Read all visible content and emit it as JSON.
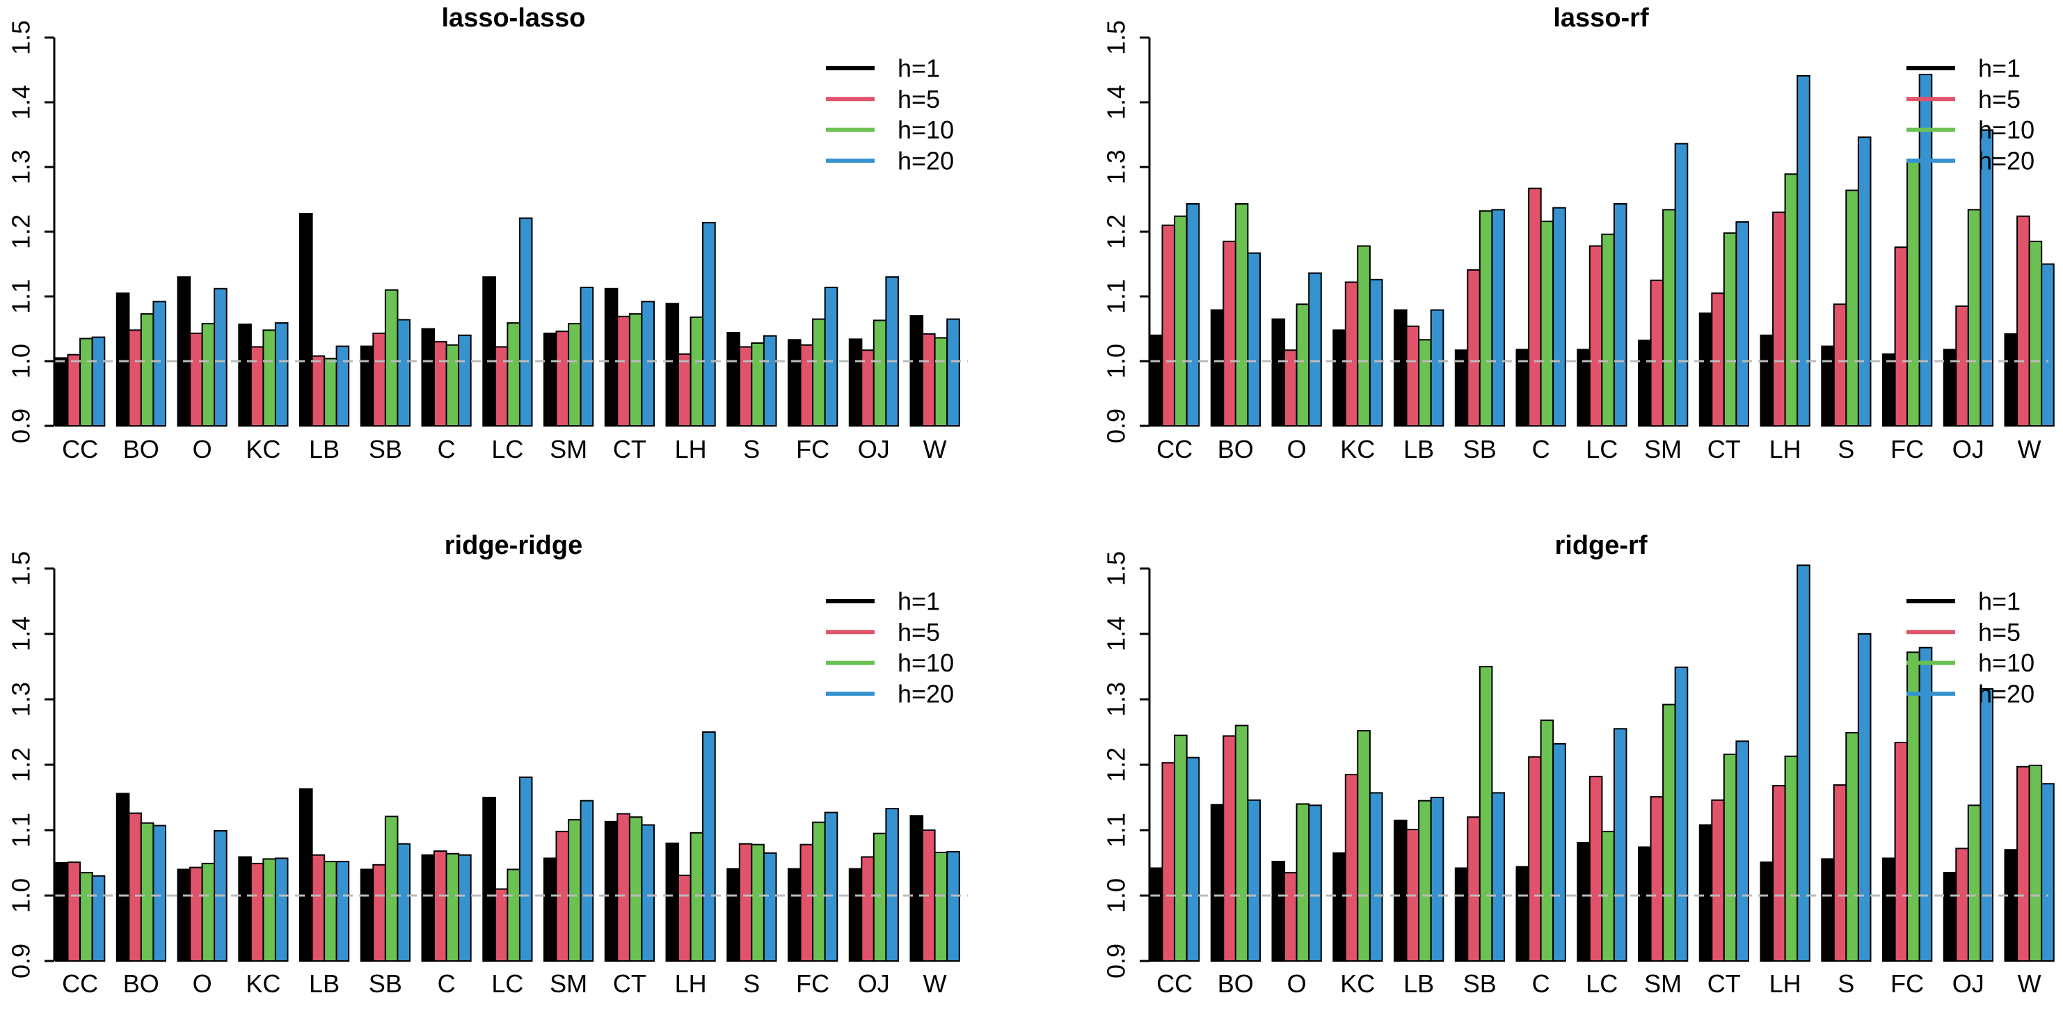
{
  "figure": {
    "background": "#ffffff",
    "reference_line": {
      "y": 1.0,
      "color": "#bbbbbb",
      "style": "dashed"
    },
    "axis_color": "#000000",
    "series_colors": {
      "h=1": "#000000",
      "h=5": "#e0536b",
      "h=10": "#6cc153",
      "h=20": "#3793d0"
    },
    "legend": {
      "position": "topright",
      "items": [
        {
          "label": "h=1",
          "color": "#000000"
        },
        {
          "label": "h=5",
          "color": "#e0536b"
        },
        {
          "label": "h=10",
          "color": "#6cc153"
        },
        {
          "label": "h=20",
          "color": "#3793d0"
        }
      ]
    }
  },
  "chart_data": [
    {
      "type": "bar",
      "title": "lasso-lasso",
      "xlabel": "",
      "ylabel": "",
      "ylim": [
        0.9,
        1.5
      ],
      "y_ticks": [
        0.9,
        1.0,
        1.1,
        1.2,
        1.3,
        1.4,
        1.5
      ],
      "reference_line": 1.0,
      "grid": false,
      "legend_position": "topright",
      "categories": [
        "CC",
        "BO",
        "O",
        "KC",
        "LB",
        "SB",
        "C",
        "LC",
        "SM",
        "CT",
        "LH",
        "S",
        "FC",
        "OJ",
        "W"
      ],
      "series": [
        {
          "name": "h=1",
          "color": "#000000",
          "values": [
            1.005,
            1.105,
            1.13,
            1.057,
            1.228,
            1.023,
            1.05,
            1.13,
            1.043,
            1.112,
            1.089,
            1.044,
            1.033,
            1.034,
            1.07
          ]
        },
        {
          "name": "h=5",
          "color": "#e0536b",
          "values": [
            1.01,
            1.048,
            1.043,
            1.022,
            1.008,
            1.043,
            1.03,
            1.022,
            1.046,
            1.069,
            1.011,
            1.022,
            1.025,
            1.017,
            1.042
          ]
        },
        {
          "name": "h=10",
          "color": "#6cc153",
          "values": [
            1.035,
            1.073,
            1.058,
            1.048,
            1.004,
            1.11,
            1.025,
            1.059,
            1.058,
            1.073,
            1.068,
            1.028,
            1.065,
            1.063,
            1.036
          ]
        },
        {
          "name": "h=20",
          "color": "#3793d0",
          "values": [
            1.037,
            1.092,
            1.112,
            1.059,
            1.023,
            1.064,
            1.04,
            1.221,
            1.114,
            1.092,
            1.214,
            1.039,
            1.114,
            1.13,
            1.065
          ]
        }
      ]
    },
    {
      "type": "bar",
      "title": "lasso-rf",
      "xlabel": "",
      "ylabel": "",
      "ylim": [
        0.9,
        1.5
      ],
      "y_ticks": [
        0.9,
        1.0,
        1.1,
        1.2,
        1.3,
        1.4,
        1.5
      ],
      "reference_line": 1.0,
      "grid": false,
      "legend_position": "topright",
      "categories": [
        "CC",
        "BO",
        "O",
        "KC",
        "LB",
        "SB",
        "C",
        "LC",
        "SM",
        "CT",
        "LH",
        "S",
        "FC",
        "OJ",
        "W"
      ],
      "series": [
        {
          "name": "h=1",
          "color": "#000000",
          "values": [
            1.04,
            1.079,
            1.065,
            1.048,
            1.079,
            1.017,
            1.018,
            1.018,
            1.032,
            1.074,
            1.04,
            1.023,
            1.011,
            1.018,
            1.042
          ]
        },
        {
          "name": "h=5",
          "color": "#e0536b",
          "values": [
            1.21,
            1.185,
            1.017,
            1.122,
            1.054,
            1.141,
            1.267,
            1.178,
            1.125,
            1.105,
            1.23,
            1.088,
            1.176,
            1.085,
            1.224
          ]
        },
        {
          "name": "h=10",
          "color": "#6cc153",
          "values": [
            1.224,
            1.243,
            1.088,
            1.178,
            1.033,
            1.232,
            1.216,
            1.196,
            1.234,
            1.198,
            1.289,
            1.264,
            1.31,
            1.234,
            1.185
          ]
        },
        {
          "name": "h=20",
          "color": "#3793d0",
          "values": [
            1.243,
            1.167,
            1.136,
            1.126,
            1.079,
            1.234,
            1.237,
            1.243,
            1.336,
            1.215,
            1.441,
            1.346,
            1.443,
            1.357,
            1.15
          ]
        }
      ]
    },
    {
      "type": "bar",
      "title": "ridge-ridge",
      "xlabel": "",
      "ylabel": "",
      "ylim": [
        0.9,
        1.5
      ],
      "y_ticks": [
        0.9,
        1.0,
        1.1,
        1.2,
        1.3,
        1.4,
        1.5
      ],
      "reference_line": 1.0,
      "grid": false,
      "legend_position": "topright",
      "categories": [
        "CC",
        "BO",
        "O",
        "KC",
        "LB",
        "SB",
        "C",
        "LC",
        "SM",
        "CT",
        "LH",
        "S",
        "FC",
        "OJ",
        "W"
      ],
      "series": [
        {
          "name": "h=1",
          "color": "#000000",
          "values": [
            1.05,
            1.156,
            1.04,
            1.059,
            1.163,
            1.04,
            1.062,
            1.15,
            1.057,
            1.113,
            1.08,
            1.041,
            1.041,
            1.041,
            1.122
          ]
        },
        {
          "name": "h=5",
          "color": "#e0536b",
          "values": [
            1.051,
            1.126,
            1.043,
            1.049,
            1.062,
            1.047,
            1.068,
            1.01,
            1.098,
            1.125,
            1.031,
            1.079,
            1.078,
            1.059,
            1.1
          ]
        },
        {
          "name": "h=10",
          "color": "#6cc153",
          "values": [
            1.035,
            1.111,
            1.049,
            1.056,
            1.052,
            1.121,
            1.064,
            1.04,
            1.116,
            1.12,
            1.096,
            1.078,
            1.112,
            1.095,
            1.066
          ]
        },
        {
          "name": "h=20",
          "color": "#3793d0",
          "values": [
            1.03,
            1.107,
            1.099,
            1.057,
            1.052,
            1.079,
            1.062,
            1.181,
            1.145,
            1.108,
            1.25,
            1.065,
            1.127,
            1.133,
            1.067
          ]
        }
      ]
    },
    {
      "type": "bar",
      "title": "ridge-rf",
      "xlabel": "",
      "ylabel": "",
      "ylim": [
        0.9,
        1.5
      ],
      "y_ticks": [
        0.9,
        1.0,
        1.1,
        1.2,
        1.3,
        1.4,
        1.5
      ],
      "reference_line": 1.0,
      "grid": false,
      "legend_position": "topright",
      "categories": [
        "CC",
        "BO",
        "O",
        "KC",
        "LB",
        "SB",
        "C",
        "LC",
        "SM",
        "CT",
        "LH",
        "S",
        "FC",
        "OJ",
        "W"
      ],
      "series": [
        {
          "name": "h=1",
          "color": "#000000",
          "values": [
            1.042,
            1.139,
            1.052,
            1.065,
            1.115,
            1.042,
            1.044,
            1.081,
            1.074,
            1.108,
            1.051,
            1.056,
            1.057,
            1.035,
            1.07
          ]
        },
        {
          "name": "h=5",
          "color": "#e0536b",
          "values": [
            1.203,
            1.244,
            1.035,
            1.185,
            1.101,
            1.12,
            1.212,
            1.182,
            1.151,
            1.146,
            1.168,
            1.169,
            1.234,
            1.072,
            1.197
          ]
        },
        {
          "name": "h=10",
          "color": "#6cc153",
          "values": [
            1.245,
            1.26,
            1.14,
            1.252,
            1.145,
            1.35,
            1.268,
            1.098,
            1.292,
            1.216,
            1.213,
            1.249,
            1.372,
            1.138,
            1.199
          ]
        },
        {
          "name": "h=20",
          "color": "#3793d0",
          "values": [
            1.211,
            1.146,
            1.138,
            1.157,
            1.15,
            1.157,
            1.232,
            1.255,
            1.349,
            1.236,
            1.505,
            1.4,
            1.379,
            1.316,
            1.171
          ]
        }
      ]
    }
  ]
}
